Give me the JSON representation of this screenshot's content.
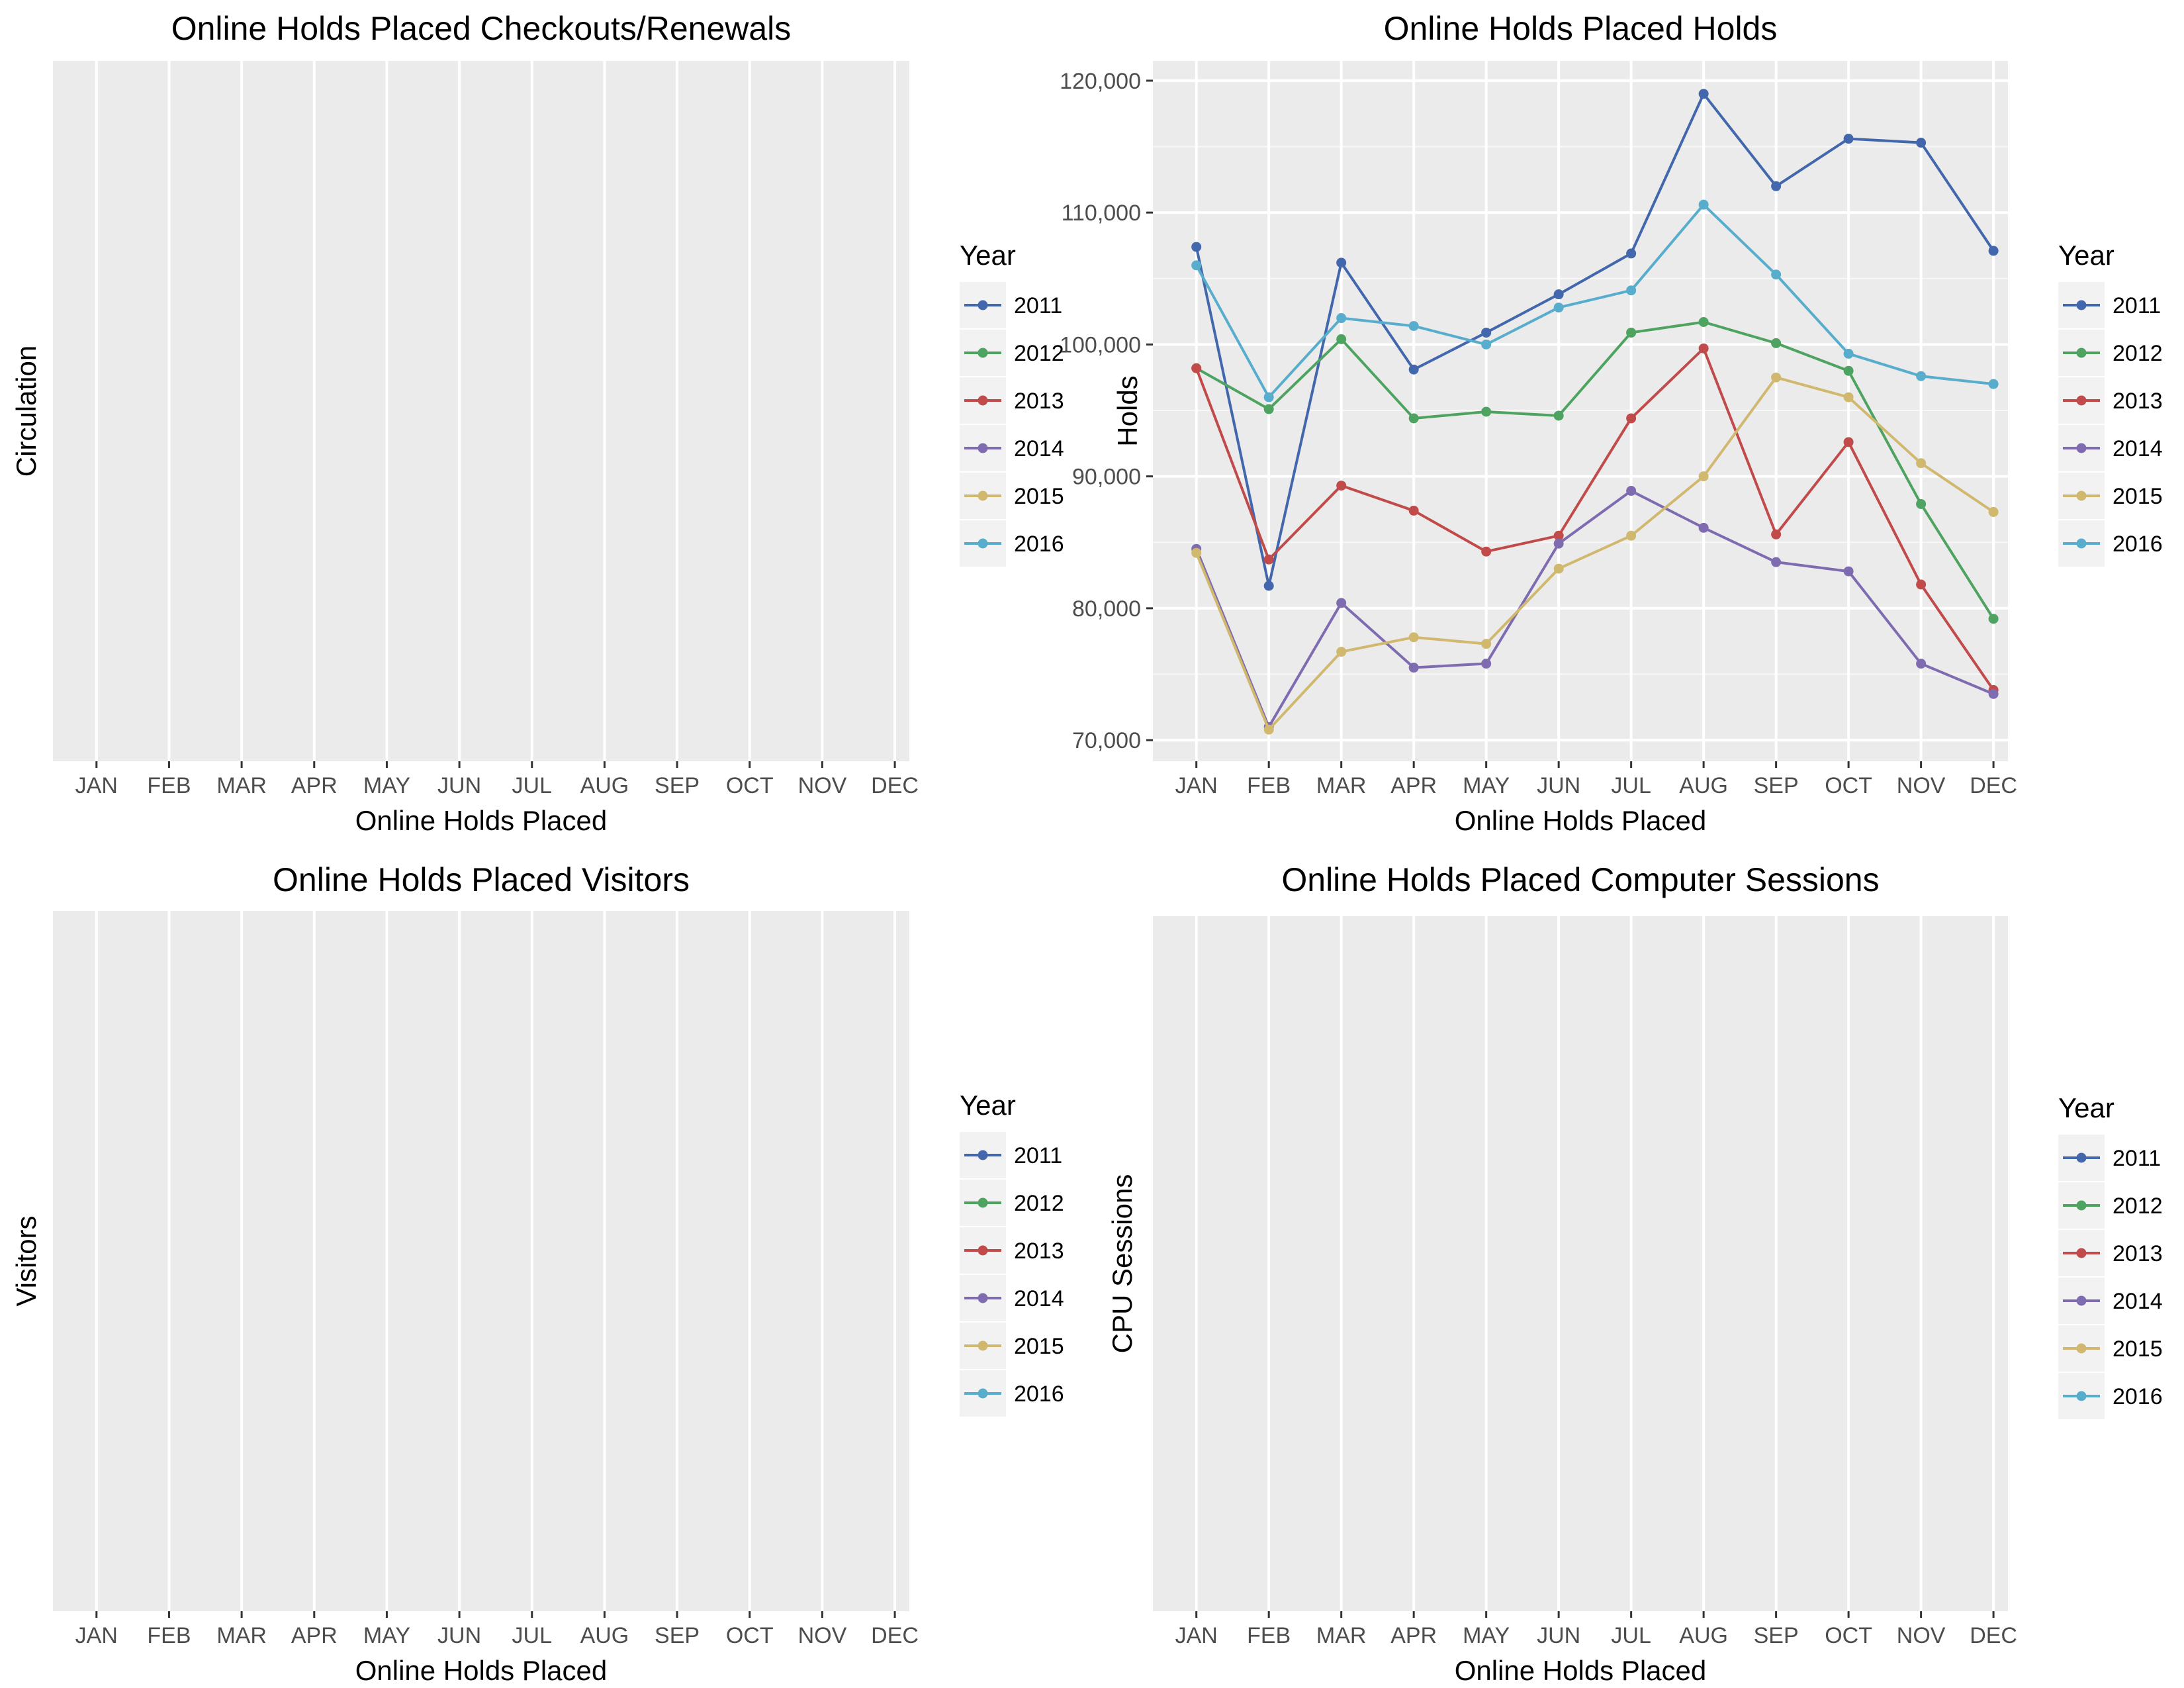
{
  "year_colors": {
    "2011": "#4267AC",
    "2012": "#4DA35F",
    "2013": "#C14A4A",
    "2014": "#7F6CB0",
    "2015": "#D0B86F",
    "2016": "#58ADCD"
  },
  "chart_data": [
    {
      "id": "checkouts",
      "type": "line",
      "title": "Online Holds Placed Checkouts/Renewals",
      "xlabel": "Online Holds Placed",
      "ylabel": "Circulation",
      "categories": [
        "JAN",
        "FEB",
        "MAR",
        "APR",
        "MAY",
        "JUN",
        "JUL",
        "AUG",
        "SEP",
        "OCT",
        "NOV",
        "DEC"
      ],
      "legend_title": "Year",
      "legend_position": "right",
      "legend": [
        "2011",
        "2012",
        "2013",
        "2014",
        "2015",
        "2016"
      ],
      "grid": true,
      "series": []
    },
    {
      "id": "holds",
      "type": "line",
      "title": "Online Holds Placed Holds",
      "xlabel": "Online Holds Placed",
      "ylabel": "Holds",
      "categories": [
        "JAN",
        "FEB",
        "MAR",
        "APR",
        "MAY",
        "JUN",
        "JUL",
        "AUG",
        "SEP",
        "OCT",
        "NOV",
        "DEC"
      ],
      "ylim": [
        68400,
        121500
      ],
      "yticks": [
        70000,
        80000,
        90000,
        100000,
        110000,
        120000
      ],
      "ytick_labels": [
        "70,000",
        "80,000",
        "90,000",
        "100,000",
        "110,000",
        "120,000"
      ],
      "legend_title": "Year",
      "legend_position": "right",
      "legend": [
        "2011",
        "2012",
        "2013",
        "2014",
        "2015",
        "2016"
      ],
      "grid": true,
      "series": [
        {
          "name": "2011",
          "values": [
            107400,
            81700,
            106200,
            98100,
            100900,
            103800,
            106900,
            119000,
            112000,
            115600,
            115300,
            107100
          ]
        },
        {
          "name": "2012",
          "values": [
            98200,
            95100,
            100400,
            94400,
            94900,
            94600,
            100900,
            101700,
            100100,
            98000,
            87900,
            79200
          ]
        },
        {
          "name": "2013",
          "values": [
            98200,
            83700,
            89300,
            87400,
            84300,
            85500,
            94400,
            99700,
            85600,
            92600,
            81800,
            73800
          ]
        },
        {
          "name": "2014",
          "values": [
            84500,
            71000,
            80400,
            75500,
            75800,
            84900,
            88900,
            86100,
            83500,
            82800,
            75800,
            73500
          ]
        },
        {
          "name": "2015",
          "values": [
            84200,
            70800,
            76700,
            77800,
            77300,
            83000,
            85500,
            90000,
            97500,
            96000,
            91000,
            87300
          ]
        },
        {
          "name": "2016",
          "values": [
            106000,
            96000,
            102000,
            101400,
            100000,
            102800,
            104100,
            110600,
            105300,
            99300,
            97600,
            97000
          ]
        }
      ]
    },
    {
      "id": "visitors",
      "type": "line",
      "title": "Online Holds Placed Visitors",
      "xlabel": "Online Holds Placed",
      "ylabel": "Visitors",
      "categories": [
        "JAN",
        "FEB",
        "MAR",
        "APR",
        "MAY",
        "JUN",
        "JUL",
        "AUG",
        "SEP",
        "OCT",
        "NOV",
        "DEC"
      ],
      "legend_title": "Year",
      "legend_position": "right",
      "legend": [
        "2011",
        "2012",
        "2013",
        "2014",
        "2015",
        "2016"
      ],
      "grid": true,
      "series": []
    },
    {
      "id": "sessions",
      "type": "line",
      "title": "Online Holds Placed Computer Sessions",
      "xlabel": "Online Holds Placed",
      "ylabel": "CPU Sessions",
      "categories": [
        "JAN",
        "FEB",
        "MAR",
        "APR",
        "MAY",
        "JUN",
        "JUL",
        "AUG",
        "SEP",
        "OCT",
        "NOV",
        "DEC"
      ],
      "legend_title": "Year",
      "legend_position": "right",
      "legend": [
        "2011",
        "2012",
        "2013",
        "2014",
        "2015",
        "2016"
      ],
      "grid": true,
      "series": []
    }
  ]
}
